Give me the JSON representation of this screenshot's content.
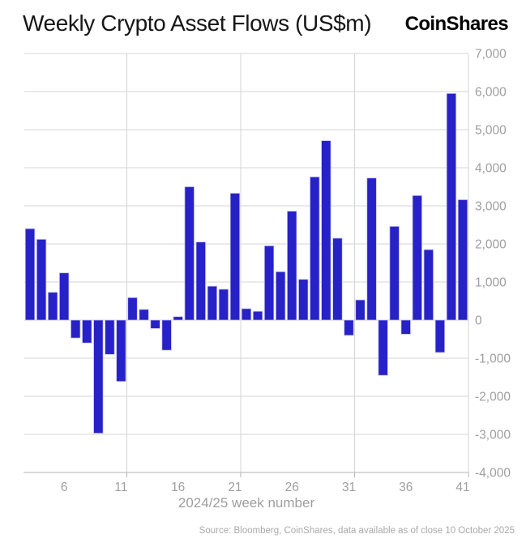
{
  "header": {
    "logo": "CoinShares"
  },
  "footer": {
    "source": "Source: Bloomberg, CoinShares, data available as of close 10 October 2025"
  },
  "colors": {
    "bar": "#2721c8",
    "bar_edge": "#c3c0ea",
    "grid": "#d4d4d4",
    "axis": "#b3b3b3",
    "tick_label": "#9e9e9e",
    "title": "#161616",
    "footer": "#a9a9a9",
    "background": "#ffffff"
  },
  "chart_data": {
    "type": "bar",
    "title": "Weekly Crypto Asset Flows (US$m)",
    "xlabel": "2024/25 week number",
    "ylabel": "",
    "x_start_week": 3,
    "x": [
      3,
      4,
      5,
      6,
      7,
      8,
      9,
      10,
      11,
      12,
      13,
      14,
      15,
      16,
      17,
      18,
      19,
      20,
      21,
      22,
      23,
      24,
      25,
      26,
      27,
      28,
      29,
      30,
      31,
      32,
      33,
      34,
      35,
      36,
      37,
      38,
      39,
      40,
      41
    ],
    "values": [
      2400,
      2120,
      730,
      1240,
      -470,
      -600,
      -2970,
      -900,
      -1610,
      590,
      280,
      -220,
      -790,
      90,
      3500,
      2050,
      890,
      810,
      3330,
      300,
      230,
      1950,
      1270,
      2860,
      1070,
      3760,
      4710,
      2150,
      -400,
      530,
      3730,
      -1450,
      2460,
      -370,
      3270,
      1850,
      -850,
      5950,
      3160
    ],
    "xticks": [
      6,
      11,
      16,
      21,
      26,
      31,
      36,
      41
    ],
    "yticks": [
      7000,
      6000,
      5000,
      4000,
      3000,
      2000,
      1000,
      0,
      -1000,
      -2000,
      -3000,
      -4000
    ],
    "ylim": [
      -4000,
      7000
    ],
    "xlim_weeks": [
      2.5,
      41.5
    ],
    "grid_boundaries": [
      11.5,
      21.5,
      31.5,
      41.5
    ],
    "grid": "on",
    "legend": "none",
    "y_axis_side": "right"
  }
}
